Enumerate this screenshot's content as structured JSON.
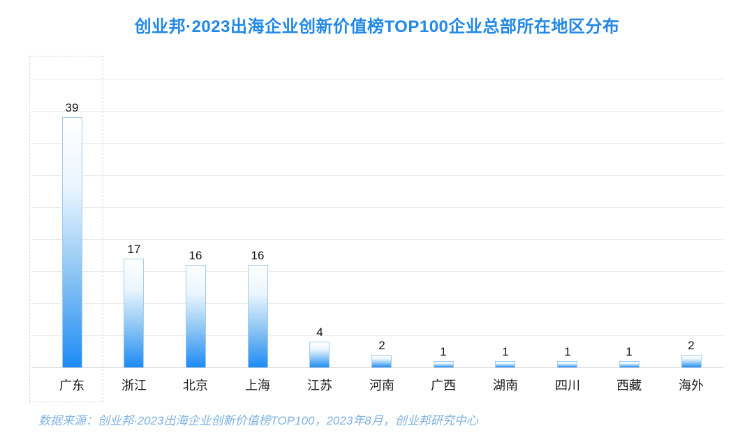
{
  "title": "创业邦·2023出海企业创新价值榜TOP100企业总部所在地区分布",
  "source_note": "数据来源：创业邦·2023出海企业创新价值榜TOP100，2023年8月，创业邦研究中心",
  "colors": {
    "title": "#2188e8",
    "bar_gradient_top": "#ffffff",
    "bar_gradient_upper": "#eaf5fe",
    "bar_gradient_mid": "#8ec6f4",
    "bar_gradient_bottom": "#1e8bf5",
    "bar_border": "#a3cdeb",
    "gridline": "#e9e9e9",
    "axis_line": "#d2d2d2",
    "highlight_box_border": "#d9d9d9",
    "value_label": "#111111",
    "category_label": "#1a1a1a",
    "source_text": "#7fb2e3"
  },
  "chart_data": {
    "type": "bar",
    "title": "创业邦·2023出海企业创新价值榜TOP100企业总部所在地区分布",
    "categories": [
      "广东",
      "浙江",
      "北京",
      "上海",
      "江苏",
      "河南",
      "广西",
      "湖南",
      "四川",
      "西藏",
      "海外"
    ],
    "values": [
      39,
      17,
      16,
      16,
      4,
      2,
      1,
      1,
      1,
      1,
      2
    ],
    "xlabel": "",
    "ylabel": "",
    "ylim": [
      0,
      45
    ],
    "gridline_step": 5,
    "grid": true,
    "legend_position": "none",
    "value_labels_shown": true,
    "highlighted_category": "广东",
    "source": "数据来源：创业邦·2023出海企业创新价值榜TOP100，2023年8月，创业邦研究中心"
  }
}
